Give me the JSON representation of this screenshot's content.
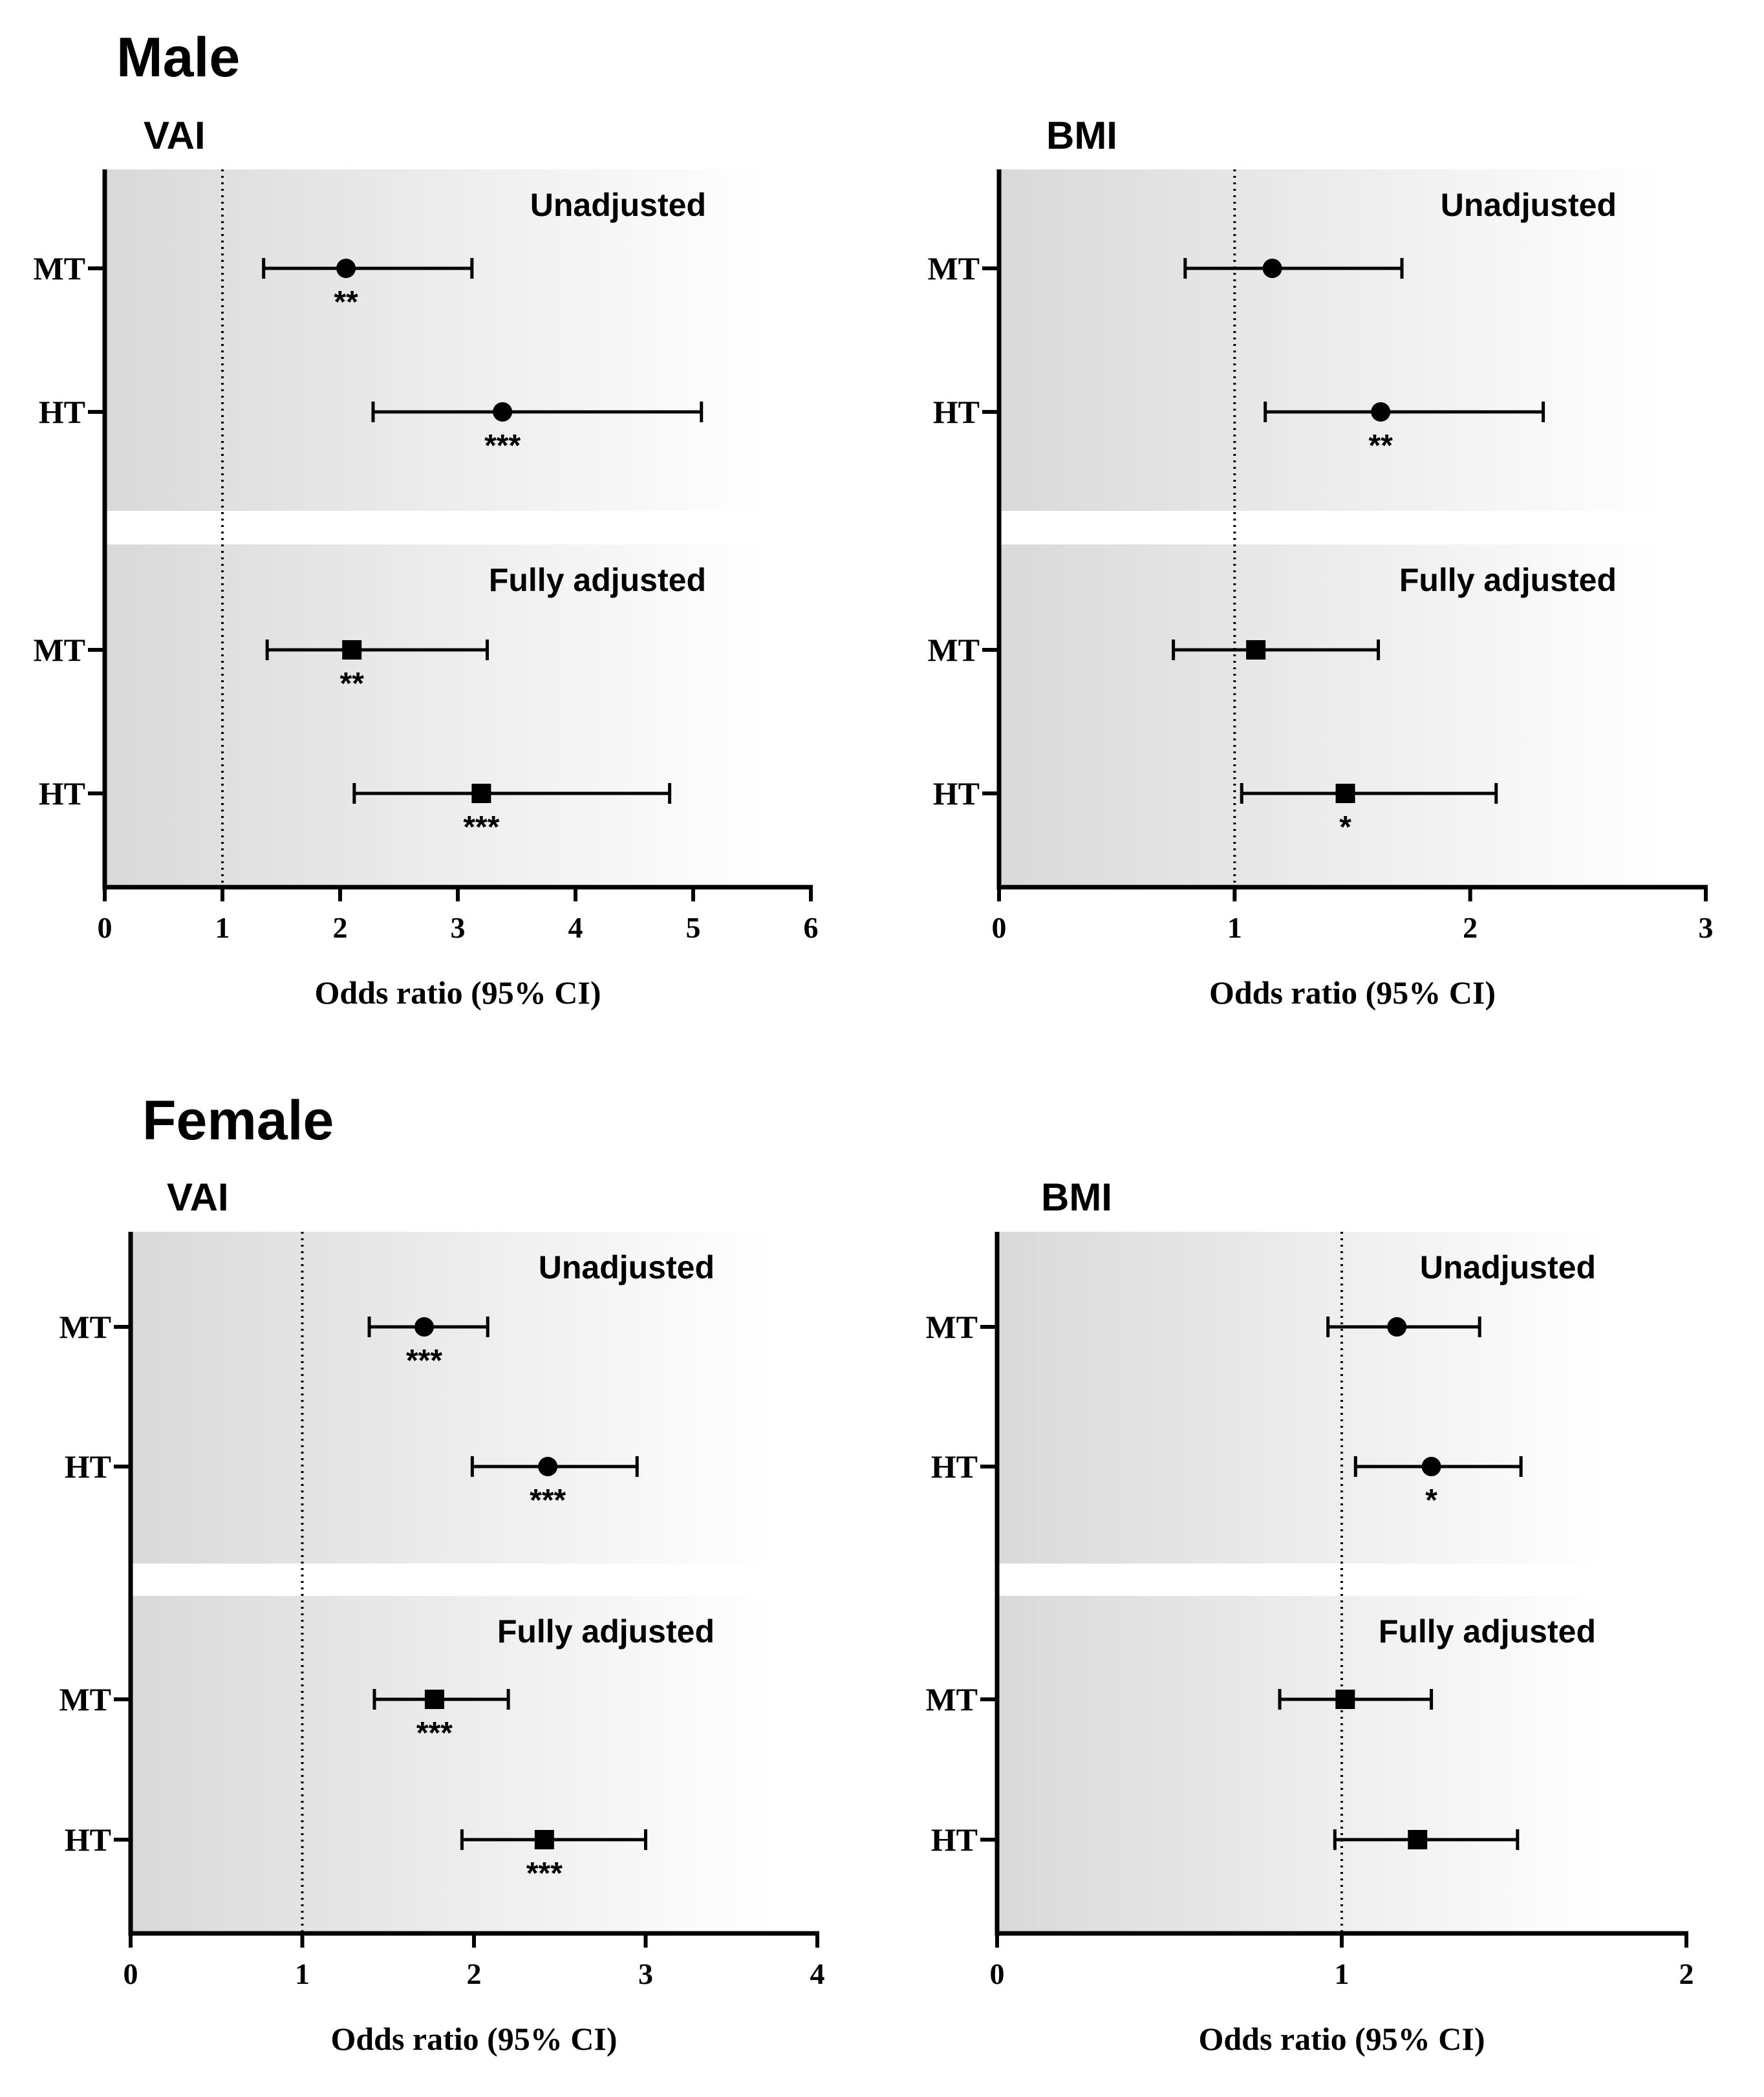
{
  "figure": {
    "sections": [
      {
        "title": "Male",
        "panels": [
          {
            "title": "VAI",
            "chart_index": 0
          },
          {
            "title": "BMI",
            "chart_index": 1
          }
        ]
      },
      {
        "title": "Female",
        "panels": [
          {
            "title": "VAI",
            "chart_index": 2
          },
          {
            "title": "BMI",
            "chart_index": 3
          }
        ]
      }
    ]
  },
  "colors": {
    "ink": "#000000",
    "band_dark": "#d9d9d9",
    "band_light": "#ffffff"
  },
  "chart_data": [
    {
      "type": "forest",
      "section": "Male",
      "title": "VAI",
      "xlabel": "Odds ratio (95% CI)",
      "xlim": [
        0,
        6
      ],
      "xticks": [
        "0",
        "1",
        "2",
        "3",
        "4",
        "5",
        "6"
      ],
      "reference_line": 1,
      "blocks": [
        {
          "label": "Unadjusted",
          "marker": "circle",
          "rows": [
            {
              "label": "MT",
              "or": 2.05,
              "lo": 1.35,
              "hi": 3.12,
              "sig": "**"
            },
            {
              "label": "HT",
              "or": 3.38,
              "lo": 2.28,
              "hi": 5.07,
              "sig": "***"
            }
          ]
        },
        {
          "label": "Fully adjusted",
          "marker": "square",
          "rows": [
            {
              "label": "MT",
              "or": 2.1,
              "lo": 1.38,
              "hi": 3.25,
              "sig": "**"
            },
            {
              "label": "HT",
              "or": 3.2,
              "lo": 2.12,
              "hi": 4.8,
              "sig": "***"
            }
          ]
        }
      ]
    },
    {
      "type": "forest",
      "section": "Male",
      "title": "BMI",
      "xlabel": "Odds ratio (95% CI)",
      "xlim": [
        0,
        3
      ],
      "xticks": [
        "0",
        "1",
        "2",
        "3"
      ],
      "reference_line": 1,
      "blocks": [
        {
          "label": "Unadjusted",
          "marker": "circle",
          "rows": [
            {
              "label": "MT",
              "or": 1.16,
              "lo": 0.79,
              "hi": 1.71,
              "sig": ""
            },
            {
              "label": "HT",
              "or": 1.62,
              "lo": 1.13,
              "hi": 2.31,
              "sig": "**"
            }
          ]
        },
        {
          "label": "Fully adjusted",
          "marker": "square",
          "rows": [
            {
              "label": "MT",
              "or": 1.09,
              "lo": 0.74,
              "hi": 1.61,
              "sig": ""
            },
            {
              "label": "HT",
              "or": 1.47,
              "lo": 1.03,
              "hi": 2.11,
              "sig": "*"
            }
          ]
        }
      ]
    },
    {
      "type": "forest",
      "section": "Female",
      "title": "VAI",
      "xlabel": "Odds ratio (95% CI)",
      "xlim": [
        0,
        4
      ],
      "xticks": [
        "0",
        "1",
        "2",
        "3",
        "4"
      ],
      "reference_line": 1,
      "blocks": [
        {
          "label": "Unadjusted",
          "marker": "circle",
          "rows": [
            {
              "label": "MT",
              "or": 1.71,
              "lo": 1.39,
              "hi": 2.08,
              "sig": "***"
            },
            {
              "label": "HT",
              "or": 2.43,
              "lo": 1.99,
              "hi": 2.95,
              "sig": "***"
            }
          ]
        },
        {
          "label": "Fully adjusted",
          "marker": "square",
          "rows": [
            {
              "label": "MT",
              "or": 1.77,
              "lo": 1.42,
              "hi": 2.2,
              "sig": "***"
            },
            {
              "label": "HT",
              "or": 2.41,
              "lo": 1.93,
              "hi": 3.0,
              "sig": "***"
            }
          ]
        }
      ]
    },
    {
      "type": "forest",
      "section": "Female",
      "title": "BMI",
      "xlabel": "Odds ratio (95% CI)",
      "xlim": [
        0,
        2
      ],
      "xticks": [
        "0",
        "1",
        "2"
      ],
      "reference_line": 1,
      "blocks": [
        {
          "label": "Unadjusted",
          "marker": "circle",
          "rows": [
            {
              "label": "MT",
              "or": 1.16,
              "lo": 0.96,
              "hi": 1.4,
              "sig": ""
            },
            {
              "label": "HT",
              "or": 1.26,
              "lo": 1.04,
              "hi": 1.52,
              "sig": "*"
            }
          ]
        },
        {
          "label": "Fully adjusted",
          "marker": "square",
          "rows": [
            {
              "label": "MT",
              "or": 1.01,
              "lo": 0.82,
              "hi": 1.26,
              "sig": ""
            },
            {
              "label": "HT",
              "or": 1.22,
              "lo": 0.98,
              "hi": 1.51,
              "sig": ""
            }
          ]
        }
      ]
    }
  ]
}
